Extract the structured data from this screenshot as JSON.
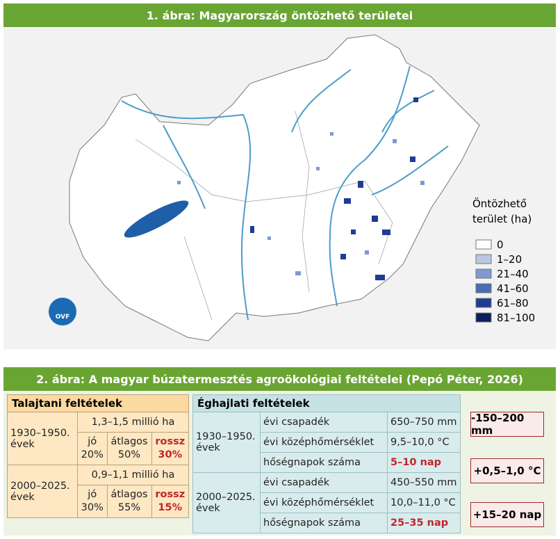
{
  "figure1": {
    "title": "1. ábra: Magyarország öntözhető területei",
    "logo": "OVF",
    "legend": {
      "title": [
        "Öntözhető",
        "terület (ha)"
      ],
      "items": [
        {
          "label": "0",
          "color": "#ffffff"
        },
        {
          "label": "1–20",
          "color": "#b9c7e4"
        },
        {
          "label": "21–40",
          "color": "#7e9ad0"
        },
        {
          "label": "41–60",
          "color": "#4a6db5"
        },
        {
          "label": "61–80",
          "color": "#1f3c94"
        },
        {
          "label": "81–100",
          "color": "#0e1e5a"
        }
      ]
    }
  },
  "figure2": {
    "title": "2. ábra: A magyar búzatermesztés agroökológiai feltételei (Pepó Péter, 2026)",
    "soil": {
      "header": "Talajtani feltételek",
      "periods": [
        {
          "label": "1930–1950. évek",
          "area": "1,3–1,5 millió ha",
          "quality": [
            {
              "label": "jó",
              "share": "20%"
            },
            {
              "label": "átlagos",
              "share": "50%"
            },
            {
              "label": "rossz",
              "share": "30%"
            }
          ]
        },
        {
          "label": "2000–2025. évek",
          "area": "0,9–1,1 millió ha",
          "quality": [
            {
              "label": "jó",
              "share": "30%"
            },
            {
              "label": "átlagos",
              "share": "55%"
            },
            {
              "label": "rossz",
              "share": "15%"
            }
          ]
        }
      ]
    },
    "climate": {
      "header": "Éghajlati feltételek",
      "periods": [
        {
          "label": "1930–1950. évek",
          "rows": [
            [
              "évi csapadék",
              "650–750 mm"
            ],
            [
              "évi középhőmérséklet",
              "9,5–10,0 °C"
            ],
            [
              "hőségnapok száma",
              "5–10 nap"
            ]
          ]
        },
        {
          "label": "2000–2025. évek",
          "rows": [
            [
              "évi csapadék",
              "450–550 mm"
            ],
            [
              "évi középhőmérséklet",
              "10,0–11,0 °C"
            ],
            [
              "hőségnapok száma",
              "25–35 nap"
            ]
          ]
        }
      ]
    },
    "changes": [
      "-150–200 mm",
      "+0,5–1,0 °C",
      "+15–20 nap"
    ]
  }
}
